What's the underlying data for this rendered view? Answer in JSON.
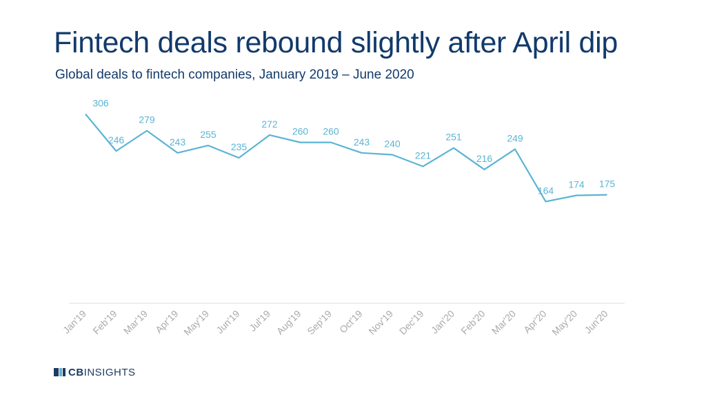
{
  "title": "Fintech deals rebound slightly after April dip",
  "subtitle": "Global deals to fintech companies, January 2019 – June 2020",
  "logo": {
    "brand_bold": "CB",
    "brand_regular": "INSIGHTS"
  },
  "colors": {
    "line": "#5ab4d4",
    "label": "#5ab4d4",
    "title": "#123a6b",
    "axis": "#dddddd",
    "tick": "#aaaaaa"
  },
  "chart_data": {
    "type": "line",
    "title": "Fintech deals rebound slightly after April dip",
    "subtitle": "Global deals to fintech companies, January 2019 – June 2020",
    "xlabel": "",
    "ylabel": "",
    "ylim": [
      0,
      320
    ],
    "grid": false,
    "legend": "none",
    "categories": [
      "Jan'19",
      "Feb'19",
      "Mar'19",
      "Apr'19",
      "May'19",
      "Jun'19",
      "Jul'19",
      "Aug'19",
      "Sep'19",
      "Oct'19",
      "Nov'19",
      "Dec'19",
      "Jan'20",
      "Feb'20",
      "Mar'20",
      "Apr'20",
      "May'20",
      "Jun'20"
    ],
    "values": [
      306,
      246,
      279,
      243,
      255,
      235,
      272,
      260,
      260,
      243,
      240,
      221,
      251,
      216,
      249,
      164,
      174,
      175
    ]
  }
}
